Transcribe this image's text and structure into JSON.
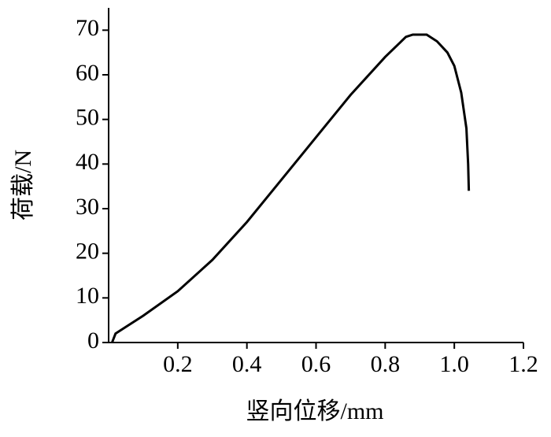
{
  "chart_data": {
    "type": "line",
    "x_label": "竖向位移/mm",
    "y_label": "荷载/N",
    "x": [
      0.01,
      0.02,
      0.05,
      0.1,
      0.2,
      0.3,
      0.4,
      0.5,
      0.6,
      0.7,
      0.8,
      0.86,
      0.88,
      0.92,
      0.95,
      0.98,
      1.0,
      1.02,
      1.035,
      1.04,
      1.042
    ],
    "series": [
      {
        "name": "荷载",
        "color": "#000000",
        "values": [
          0,
          2,
          3.5,
          6,
          11.5,
          18.5,
          27,
          36.5,
          46,
          55.5,
          64,
          68.5,
          69,
          69,
          67.5,
          65,
          62,
          56,
          48,
          40,
          34
        ]
      }
    ],
    "xlim": [
      0,
      1.2
    ],
    "ylim": [
      0,
      75
    ],
    "xticks": [
      0.2,
      0.4,
      0.6,
      0.8,
      {
        "value": 1,
        "label": "1.0"
      },
      1.2
    ],
    "yticks": [
      0,
      10,
      20,
      30,
      40,
      50,
      60,
      70
    ]
  }
}
